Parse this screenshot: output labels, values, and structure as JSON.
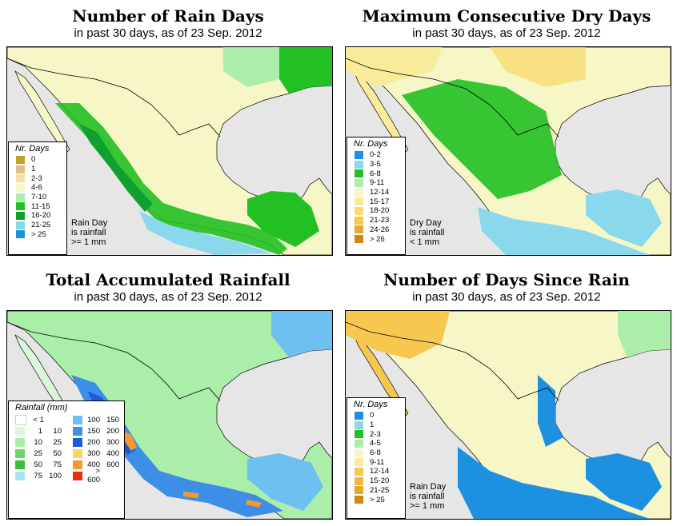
{
  "panels": {
    "rain_days": {
      "title": "Number of Rain Days",
      "subtitle": "in past 30 days, as of  23 Sep. 2012",
      "legend_title": "Nr. Days",
      "legend": [
        {
          "label": "0",
          "color": "#c8a020"
        },
        {
          "label": "1",
          "color": "#dcc088"
        },
        {
          "label": "2-3",
          "color": "#f4e0a4"
        },
        {
          "label": "4-6",
          "color": "#f6f6c6"
        },
        {
          "label": "7-10",
          "color": "#aaeeaa"
        },
        {
          "label": "11-15",
          "color": "#22c022"
        },
        {
          "label": "16-20",
          "color": "#10a030"
        },
        {
          "label": "21-25",
          "color": "#8ad8ec"
        },
        {
          "label": "> 25",
          "color": "#1e90e0"
        }
      ],
      "note": [
        "Rain Day",
        "is rainfall",
        ">= 1 mm"
      ]
    },
    "dry_days": {
      "title": "Maximum Consecutive Dry Days",
      "subtitle": "in past 30 days, as of  23 Sep. 2012",
      "legend_title": "Nr. Days",
      "legend": [
        {
          "label": "0-2",
          "color": "#1e90e0"
        },
        {
          "label": "3-5",
          "color": "#8ad8ec"
        },
        {
          "label": "6-8",
          "color": "#22c022"
        },
        {
          "label": "9-11",
          "color": "#aaeeaa"
        },
        {
          "label": "12-14",
          "color": "#f6f6c6"
        },
        {
          "label": "15-17",
          "color": "#f8ec9a"
        },
        {
          "label": "18-20",
          "color": "#f8dc70"
        },
        {
          "label": "21-23",
          "color": "#f6c850"
        },
        {
          "label": "24-26",
          "color": "#e8a830"
        },
        {
          "label": "> 26",
          "color": "#d08818"
        }
      ],
      "note": [
        "Dry Day",
        "is rainfall",
        "< 1 mm"
      ]
    },
    "rainfall": {
      "title": "Total Accumulated Rainfall",
      "subtitle": "in past 30 days, as of  23 Sep. 2012",
      "legend_title": "Rainfall (mm)",
      "legend_left": [
        {
          "lo": "< 1",
          "hi": "",
          "color": "#ffffff"
        },
        {
          "lo": "1",
          "hi": "10",
          "color": "#dcf6dc"
        },
        {
          "lo": "10",
          "hi": "25",
          "color": "#aaeeaa"
        },
        {
          "lo": "25",
          "hi": "50",
          "color": "#6cd86c"
        },
        {
          "lo": "50",
          "hi": "75",
          "color": "#38c038"
        },
        {
          "lo": "75",
          "hi": "100",
          "color": "#a8e4f6"
        }
      ],
      "legend_right": [
        {
          "lo": "100",
          "hi": "150",
          "color": "#6ec0f0"
        },
        {
          "lo": "150",
          "hi": "200",
          "color": "#3c8ee6"
        },
        {
          "lo": "200",
          "hi": "300",
          "color": "#1e5ad8"
        },
        {
          "lo": "300",
          "hi": "400",
          "color": "#f8d860"
        },
        {
          "lo": "400",
          "hi": "600",
          "color": "#f89830"
        },
        {
          "lo": "> 600",
          "hi": "",
          "color": "#e83010"
        }
      ]
    },
    "days_since": {
      "title": "Number of Days Since Rain",
      "subtitle": "in past 30 days, as of  23 Sep. 2012",
      "legend_title": "Nr. Days",
      "legend": [
        {
          "label": "0",
          "color": "#1e90e0"
        },
        {
          "label": "1",
          "color": "#8ad8ec"
        },
        {
          "label": "2-3",
          "color": "#22c022"
        },
        {
          "label": "4-5",
          "color": "#aaeeaa"
        },
        {
          "label": "6-8",
          "color": "#f6f6c6"
        },
        {
          "label": "9-11",
          "color": "#f8ec9a"
        },
        {
          "label": "12-14",
          "color": "#f6c850"
        },
        {
          "label": "15-20",
          "color": "#f0b840"
        },
        {
          "label": "21-25",
          "color": "#e8a830"
        },
        {
          "label": "> 25",
          "color": "#d08818"
        }
      ],
      "note": [
        "Rain Day",
        "is rainfall",
        ">= 1 mm"
      ]
    }
  },
  "colors": {
    "ocean": "#e6e6e6",
    "border": "#000000"
  }
}
